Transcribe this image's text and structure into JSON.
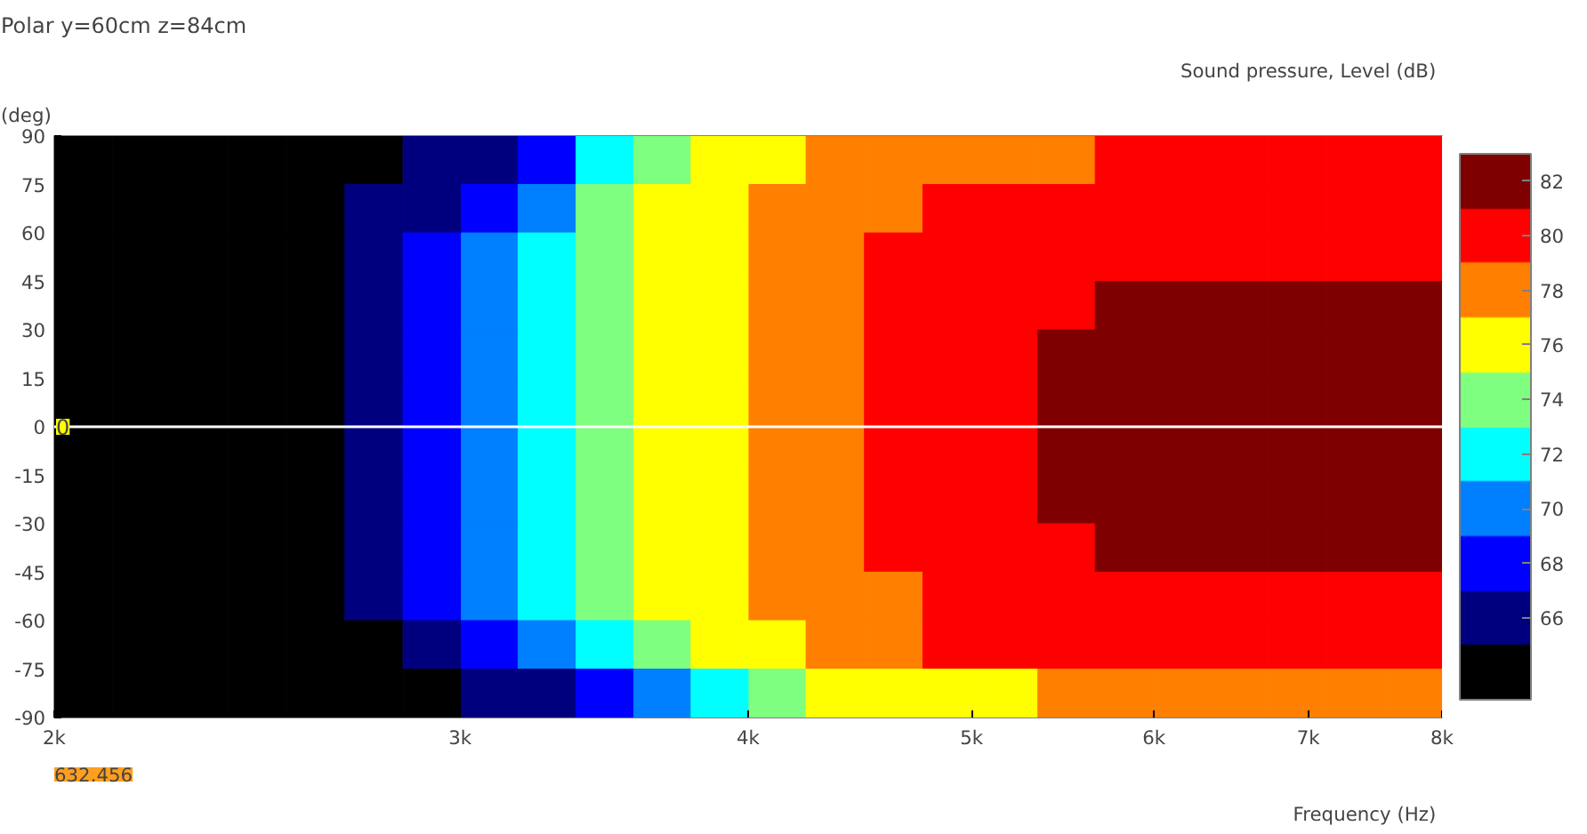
{
  "chart_data": {
    "type": "heatmap",
    "title": "Polar y=60cm z=84cm",
    "ylabel": "(deg)",
    "xlabel": "Frequency  (Hz)",
    "clabel": "Sound pressure, Level  (dB)",
    "x": [
      2060,
      2180,
      2310,
      2450,
      2600,
      2750,
      2920,
      3090,
      3270,
      3470,
      3670,
      3890,
      4120,
      4360,
      4630,
      4900,
      5190,
      5500,
      5820,
      6170,
      6540,
      6930,
      7340,
      7780
    ],
    "y": [
      82.5,
      67.5,
      52.5,
      37.5,
      22.5,
      7.5,
      -7.5,
      -22.5,
      -37.5,
      -52.5,
      -67.5,
      -82.5
    ],
    "cells": [
      [
        64,
        64,
        64,
        64,
        64,
        64,
        66,
        66,
        68,
        72,
        74,
        76,
        76,
        78,
        78,
        78,
        78,
        78,
        80,
        80,
        80,
        80,
        80,
        80
      ],
      [
        64,
        64,
        64,
        64,
        64,
        66,
        66,
        68,
        70,
        74,
        76,
        76,
        78,
        78,
        78,
        80,
        80,
        80,
        80,
        80,
        80,
        80,
        80,
        80
      ],
      [
        64,
        64,
        64,
        64,
        64,
        66,
        68,
        70,
        72,
        74,
        76,
        76,
        78,
        78,
        80,
        80,
        80,
        80,
        80,
        80,
        80,
        80,
        80,
        80
      ],
      [
        64,
        64,
        64,
        64,
        64,
        66,
        68,
        70,
        72,
        74,
        76,
        76,
        78,
        78,
        80,
        80,
        80,
        80,
        82,
        82,
        82,
        82,
        82,
        82
      ],
      [
        64,
        64,
        64,
        64,
        64,
        66,
        68,
        70,
        72,
        74,
        76,
        76,
        78,
        78,
        80,
        80,
        80,
        82,
        82,
        82,
        82,
        82,
        82,
        82
      ],
      [
        64,
        64,
        64,
        64,
        64,
        66,
        68,
        70,
        72,
        74,
        76,
        76,
        78,
        78,
        80,
        80,
        80,
        82,
        82,
        82,
        82,
        82,
        82,
        82
      ],
      [
        64,
        64,
        64,
        64,
        64,
        66,
        68,
        70,
        72,
        74,
        76,
        76,
        78,
        78,
        80,
        80,
        80,
        82,
        82,
        82,
        82,
        82,
        82,
        82
      ],
      [
        64,
        64,
        64,
        64,
        64,
        66,
        68,
        70,
        72,
        74,
        76,
        76,
        78,
        78,
        80,
        80,
        80,
        82,
        82,
        82,
        82,
        82,
        82,
        82
      ],
      [
        64,
        64,
        64,
        64,
        64,
        66,
        68,
        70,
        72,
        74,
        76,
        76,
        78,
        78,
        80,
        80,
        80,
        80,
        82,
        82,
        82,
        82,
        82,
        82
      ],
      [
        64,
        64,
        64,
        64,
        64,
        66,
        68,
        70,
        72,
        74,
        76,
        76,
        78,
        78,
        78,
        80,
        80,
        80,
        80,
        80,
        80,
        80,
        80,
        80
      ],
      [
        64,
        64,
        64,
        64,
        64,
        64,
        66,
        68,
        70,
        72,
        74,
        76,
        76,
        78,
        78,
        80,
        80,
        80,
        80,
        80,
        80,
        80,
        80,
        80
      ],
      [
        64,
        64,
        64,
        64,
        64,
        64,
        64,
        66,
        66,
        68,
        70,
        72,
        74,
        76,
        76,
        76,
        76,
        78,
        78,
        78,
        78,
        78,
        78,
        78
      ]
    ],
    "colors": [
      "#000000",
      "#00007f",
      "#0000ff",
      "#007fff",
      "#00ffff",
      "#7fff7f",
      "#ffff00",
      "#ff7f00",
      "#ff0000",
      "#7f0000"
    ],
    "clim": [
      63,
      83
    ],
    "cticks": [
      66,
      68,
      70,
      72,
      74,
      76,
      78,
      80,
      82
    ],
    "log": "x",
    "xlim": [
      2000,
      8000
    ],
    "xticks": [
      {
        "value": 2000,
        "label": "2k"
      },
      {
        "value": 3000,
        "label": "3k"
      },
      {
        "value": 4000,
        "label": "4k"
      },
      {
        "value": 5000,
        "label": "5k"
      },
      {
        "value": 6000,
        "label": "6k"
      },
      {
        "value": 7000,
        "label": "7k"
      },
      {
        "value": 8000,
        "label": "8k"
      }
    ],
    "ylim": [
      -90,
      90
    ],
    "yticks": [
      -90,
      -75,
      -60,
      -45,
      -30,
      -15,
      0,
      15,
      30,
      45,
      60,
      75,
      90
    ],
    "ref_lines": [
      {
        "axis": "y",
        "value": 0,
        "label": "0",
        "color": "#ffffff"
      }
    ],
    "annotations": [
      "632.456"
    ]
  }
}
